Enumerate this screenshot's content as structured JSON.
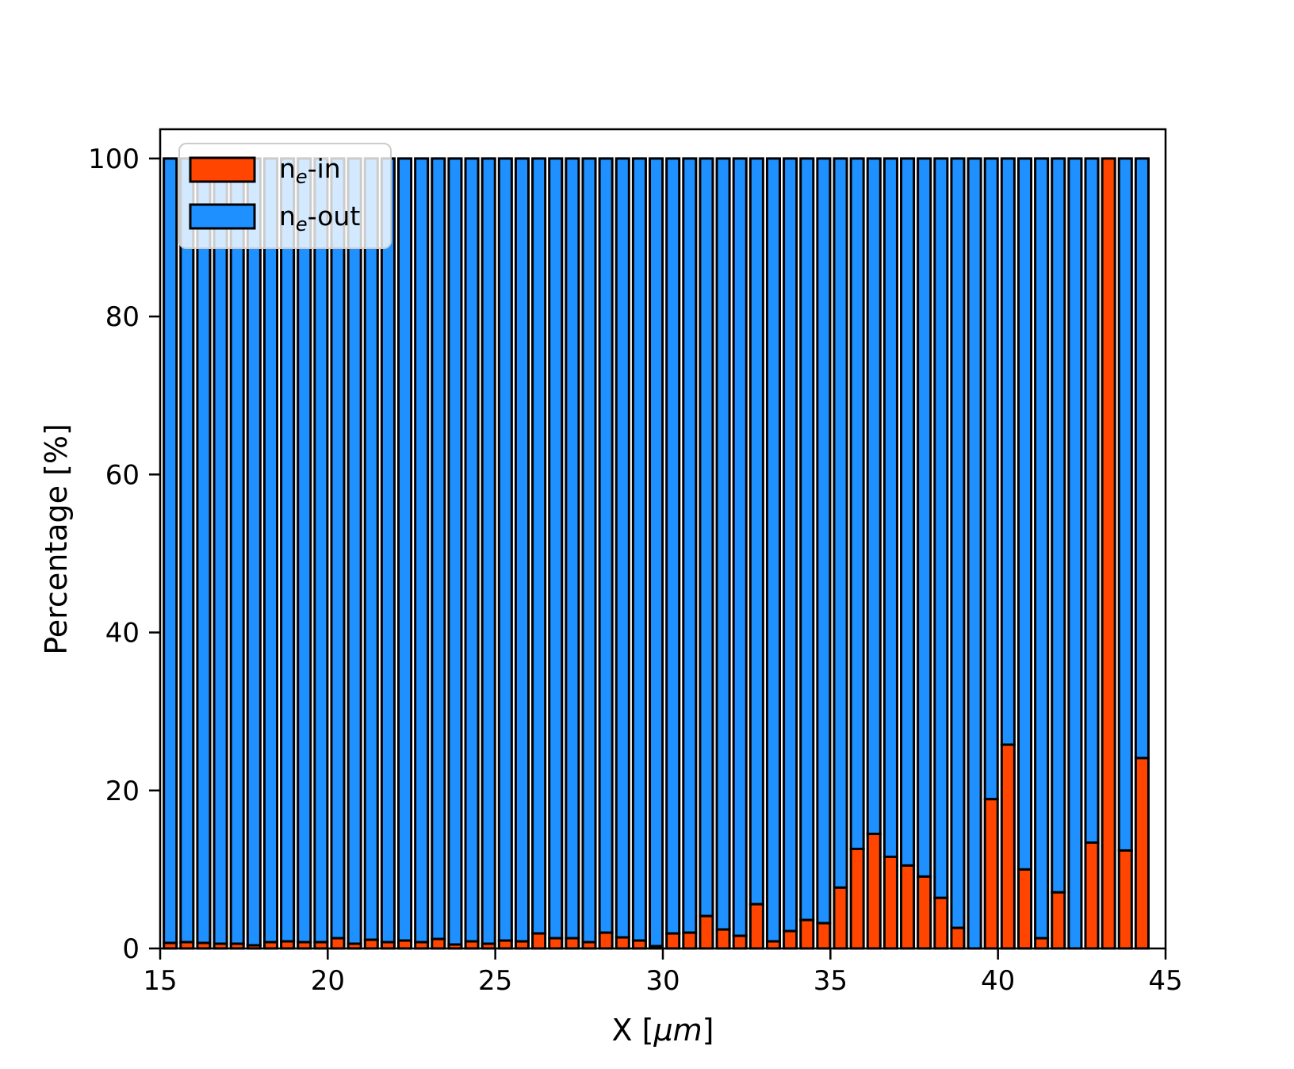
{
  "figure": {
    "background": "#ffffff",
    "xlabel": {
      "prefix": "X [",
      "italic": "μm",
      "suffix": "]"
    },
    "ylabel": "Percentage  [%]"
  },
  "legend": {
    "items": [
      {
        "name": "ne-in",
        "prefix": "n",
        "sub": "e",
        "suffix": "-in",
        "color": "#ff4500"
      },
      {
        "name": "ne-out",
        "prefix": "n",
        "sub": "e",
        "suffix": "-out",
        "color": "#1e90ff"
      }
    ],
    "background": "#ffffff",
    "border_color": "#cccccc",
    "opacity": 0.8
  },
  "chart_data": {
    "type": "bar",
    "stacked": true,
    "stack_total": 100,
    "title": "",
    "xlabel": "X [μm]",
    "ylabel": "Percentage [%]",
    "xlim": [
      15,
      45
    ],
    "ylim": [
      0,
      103.7
    ],
    "x_ticks": [
      15,
      20,
      25,
      30,
      35,
      40,
      45
    ],
    "y_ticks": [
      0,
      20,
      40,
      60,
      80,
      100
    ],
    "grid": false,
    "legend_position": "upper left",
    "bar_width_um": 0.38,
    "bar_edge_color": "#000000",
    "x": [
      15.3,
      15.8,
      16.3,
      16.8,
      17.3,
      17.8,
      18.3,
      18.8,
      19.3,
      19.8,
      20.3,
      20.8,
      21.3,
      21.8,
      22.3,
      22.8,
      23.3,
      23.8,
      24.3,
      24.8,
      25.3,
      25.8,
      26.3,
      26.8,
      27.3,
      27.8,
      28.3,
      28.8,
      29.3,
      29.8,
      30.3,
      30.8,
      31.3,
      31.8,
      32.3,
      32.8,
      33.3,
      33.8,
      34.3,
      34.8,
      35.3,
      35.8,
      36.3,
      36.8,
      37.3,
      37.8,
      38.3,
      38.8,
      39.3,
      39.8,
      40.3,
      40.8,
      41.3,
      41.8,
      42.3,
      42.8,
      43.3,
      43.8,
      44.3
    ],
    "series": [
      {
        "name": "ne-in",
        "color": "#ff4500",
        "values": [
          0.7,
          0.8,
          0.7,
          0.6,
          0.6,
          0.4,
          0.8,
          0.9,
          0.8,
          0.8,
          1.3,
          0.6,
          1.1,
          0.8,
          1.0,
          0.8,
          1.2,
          0.5,
          0.9,
          0.6,
          1.0,
          0.9,
          1.9,
          1.3,
          1.3,
          0.8,
          2.0,
          1.4,
          1.0,
          0.3,
          1.9,
          2.0,
          4.1,
          2.4,
          1.6,
          5.6,
          0.9,
          2.2,
          3.6,
          3.2,
          7.7,
          12.6,
          14.5,
          11.6,
          10.5,
          9.1,
          6.4,
          2.6,
          0.0,
          18.9,
          25.8,
          10.0,
          1.3,
          7.1,
          0.0,
          13.4,
          100.0,
          12.4,
          24.1
        ]
      },
      {
        "name": "ne-out",
        "color": "#1e90ff",
        "values": [
          99.3,
          99.2,
          99.3,
          99.4,
          99.4,
          99.6,
          99.2,
          99.1,
          99.2,
          99.2,
          98.7,
          99.4,
          98.9,
          99.2,
          99.0,
          99.2,
          98.8,
          99.5,
          99.1,
          99.4,
          99.0,
          99.1,
          98.1,
          98.7,
          98.7,
          99.2,
          98.0,
          98.6,
          99.0,
          99.7,
          98.1,
          98.0,
          95.9,
          97.6,
          98.4,
          94.4,
          99.1,
          97.8,
          96.4,
          96.8,
          92.3,
          87.4,
          85.5,
          88.4,
          89.5,
          90.9,
          93.6,
          97.4,
          100.0,
          81.1,
          74.2,
          90.0,
          98.7,
          92.9,
          100.0,
          86.6,
          0.0,
          87.6,
          75.9
        ]
      }
    ]
  }
}
